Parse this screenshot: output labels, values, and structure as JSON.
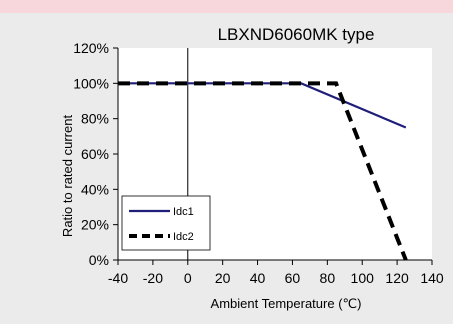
{
  "chart_data": {
    "type": "line",
    "title": "LBXND6060MK type",
    "xlabel": "Ambient Temperature (℃)",
    "ylabel": "Ratio to rated current",
    "xlim": [
      -40,
      140
    ],
    "ylim": [
      0,
      120
    ],
    "x_ticks": [
      "-40",
      "-20",
      "0",
      "20",
      "40",
      "60",
      "80",
      "100",
      "120",
      "140"
    ],
    "y_ticks": [
      "0%",
      "20%",
      "40%",
      "60%",
      "80%",
      "100%",
      "120%"
    ],
    "grid": false,
    "legend": "bottom-left",
    "series": [
      {
        "name": "Idc1",
        "color": "#1f1f7a",
        "style": "solid",
        "x": [
          -40,
          65,
          125
        ],
        "y": [
          100,
          100,
          75
        ]
      },
      {
        "name": "Idc2",
        "color": "#000000",
        "style": "dashed",
        "x": [
          -40,
          85,
          125
        ],
        "y": [
          100,
          100,
          0
        ]
      }
    ]
  }
}
